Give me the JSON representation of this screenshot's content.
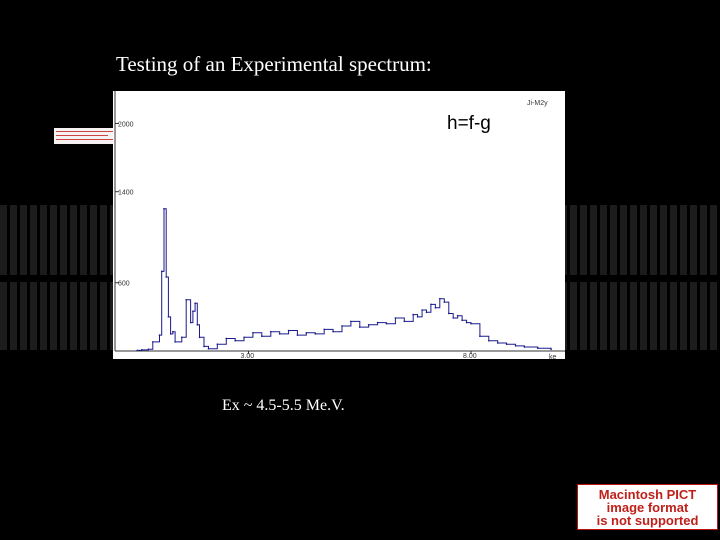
{
  "slide": {
    "title": "Testing of an Experimental spectrum:",
    "caption": "Ex  ~ 4.5-5.5 Me.V.",
    "background_color": "#000000"
  },
  "pict_placeholder": {
    "lines": [
      "Macintosh PICT",
      "image format",
      "is not supported"
    ],
    "color": "#c0201a"
  },
  "chart_data": {
    "type": "line",
    "annotation": "h=f-g",
    "corner_label": "Ji-M2y",
    "x_unit_label": "ke",
    "xlim": [
      0,
      10
    ],
    "ylim": [
      0,
      2250
    ],
    "x_ticks": [
      3,
      8
    ],
    "x_tick_labels": [
      "3.00",
      "8.00"
    ],
    "y_ticks": [
      600,
      1400,
      2000
    ],
    "y_tick_labels": [
      "600",
      "1400",
      "2000"
    ],
    "grid": false,
    "line_color": "#1a1a8c",
    "series": [
      {
        "x": [
          0.5,
          0.6,
          0.75,
          0.85,
          1.0,
          1.05,
          1.1,
          1.15,
          1.2,
          1.25,
          1.3,
          1.35,
          1.5,
          1.6,
          1.7,
          1.75,
          1.8,
          1.85,
          1.9,
          2.0,
          2.1,
          2.3,
          2.5,
          2.7,
          2.9,
          3.1,
          3.3,
          3.5,
          3.7,
          3.9,
          4.1,
          4.3,
          4.5,
          4.7,
          4.9,
          5.1,
          5.3,
          5.5,
          5.7,
          5.9,
          6.1,
          6.3,
          6.5,
          6.7,
          6.8,
          6.9,
          7.0,
          7.1,
          7.2,
          7.3,
          7.4,
          7.5,
          7.6,
          7.7,
          7.8,
          7.9,
          8.0,
          8.2,
          8.4,
          8.6,
          8.8,
          9.0,
          9.2,
          9.5,
          9.8
        ],
        "y": [
          5,
          10,
          15,
          80,
          140,
          700,
          1250,
          650,
          300,
          150,
          170,
          80,
          120,
          450,
          250,
          350,
          420,
          230,
          120,
          40,
          20,
          60,
          110,
          90,
          120,
          160,
          130,
          170,
          150,
          180,
          140,
          160,
          150,
          190,
          170,
          220,
          260,
          210,
          230,
          250,
          240,
          290,
          260,
          320,
          300,
          360,
          340,
          410,
          380,
          460,
          430,
          330,
          290,
          310,
          270,
          250,
          240,
          130,
          90,
          70,
          60,
          45,
          35,
          25,
          15
        ]
      }
    ]
  }
}
